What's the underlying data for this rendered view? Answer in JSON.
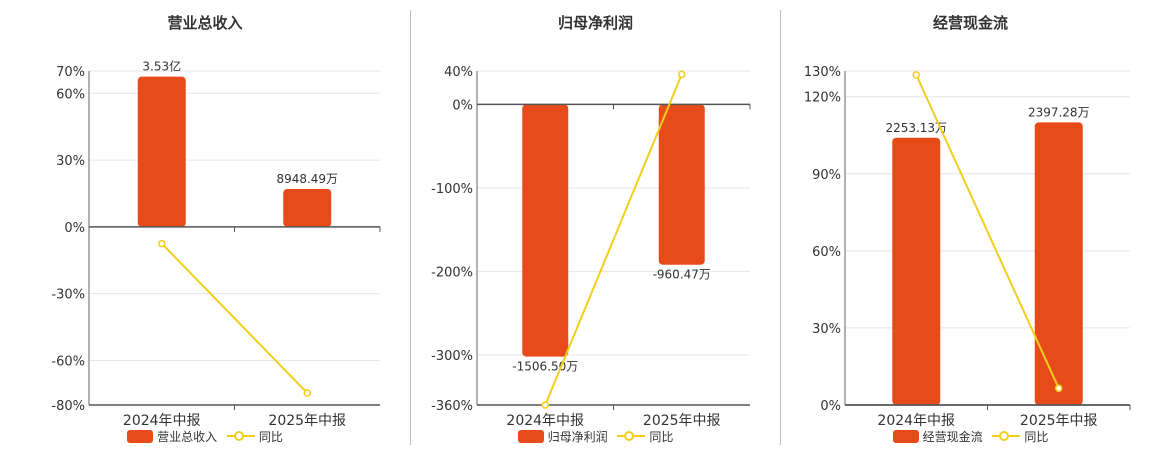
{
  "colors": {
    "bar": "#e84b1a",
    "line": "#f2cf1b",
    "axis": "#333333",
    "grid": "#e6e6e6"
  },
  "chart_data": [
    {
      "type": "bar",
      "title": "营业总收入",
      "categories": [
        "2024年中报",
        "2025年中报"
      ],
      "series": [
        {
          "name": "营业总收入",
          "values": [
            67.5,
            17.0
          ],
          "labels": [
            "3.53亿",
            "8948.49万"
          ]
        },
        {
          "name": "同比",
          "type": "line",
          "values": [
            -7.5,
            -74.6
          ]
        }
      ],
      "yticks": [
        70,
        60,
        30,
        0,
        -30,
        -60,
        -80
      ],
      "ylim": [
        -80,
        70
      ],
      "unit": "%",
      "grid": true,
      "legend": "bottom"
    },
    {
      "type": "bar",
      "title": "归母净利润",
      "categories": [
        "2024年中报",
        "2025年中报"
      ],
      "series": [
        {
          "name": "归母净利润",
          "values": [
            -302,
            -192
          ],
          "labels": [
            "-1506.50万",
            "-960.47万"
          ]
        },
        {
          "name": "同比",
          "type": "line",
          "values": [
            -360,
            36
          ]
        }
      ],
      "yticks": [
        40,
        0,
        -100,
        -200,
        -300,
        -360
      ],
      "ylim": [
        -360,
        40
      ],
      "unit": "%",
      "grid": true,
      "legend": "bottom"
    },
    {
      "type": "bar",
      "title": "经营现金流",
      "categories": [
        "2024年中报",
        "2025年中报"
      ],
      "series": [
        {
          "name": "经营现金流",
          "values": [
            104,
            110
          ],
          "labels": [
            "2253.13万",
            "2397.28万"
          ]
        },
        {
          "name": "同比",
          "type": "line",
          "values": [
            128.5,
            6.5
          ]
        }
      ],
      "yticks": [
        130,
        120,
        90,
        60,
        30,
        0
      ],
      "ylim": [
        0,
        130
      ],
      "unit": "%",
      "grid": true,
      "legend": "bottom"
    }
  ]
}
